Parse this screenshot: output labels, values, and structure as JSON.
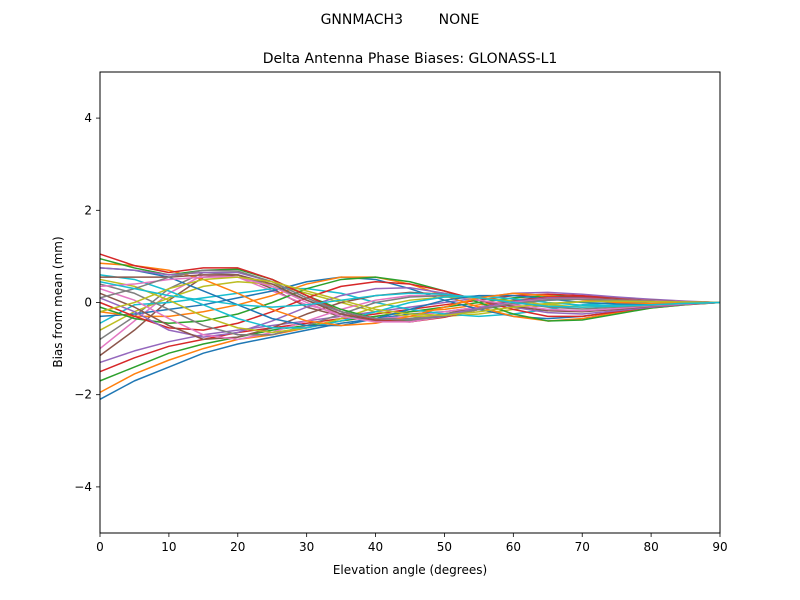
{
  "chart_data": {
    "type": "line",
    "suptitle": "GNNMACH3        NONE",
    "title": "Delta Antenna Phase Biases: GLONASS-L1",
    "xlabel": "Elevation angle (degrees)",
    "ylabel": "Bias from mean (mm)",
    "xlim": [
      0,
      90
    ],
    "ylim": [
      -5,
      5
    ],
    "xticks": [
      0,
      10,
      20,
      30,
      40,
      50,
      60,
      70,
      80,
      90
    ],
    "yticks": [
      -4,
      -2,
      0,
      2,
      4
    ],
    "grid": false,
    "legend": "none",
    "x": [
      0,
      5,
      10,
      15,
      20,
      25,
      30,
      35,
      40,
      45,
      50,
      55,
      60,
      65,
      70,
      75,
      80,
      85,
      90
    ],
    "colors": [
      "#1f77b4",
      "#ff7f0e",
      "#2ca02c",
      "#d62728",
      "#9467bd",
      "#8c564b",
      "#e377c2",
      "#7f7f7f",
      "#bcbd22",
      "#17becf"
    ],
    "series": [
      {
        "values": [
          -2.1,
          -1.7,
          -1.4,
          -1.1,
          -0.9,
          -0.75,
          -0.6,
          -0.45,
          -0.35,
          -0.25,
          -0.2,
          -0.1,
          0.0,
          0.05,
          0.08,
          0.08,
          0.05,
          0.02,
          0.0
        ]
      },
      {
        "values": [
          -1.95,
          -1.55,
          -1.25,
          -1.0,
          -0.8,
          -0.7,
          -0.55,
          -0.4,
          -0.3,
          -0.2,
          -0.15,
          -0.05,
          0.05,
          0.1,
          0.1,
          0.07,
          0.04,
          0.02,
          0.0
        ]
      },
      {
        "values": [
          -1.7,
          -1.4,
          -1.1,
          -0.9,
          -0.75,
          -0.6,
          -0.5,
          -0.4,
          -0.3,
          -0.2,
          -0.1,
          0.0,
          0.1,
          0.15,
          0.12,
          0.08,
          0.05,
          0.02,
          0.0
        ]
      },
      {
        "values": [
          -1.5,
          -1.2,
          -0.95,
          -0.8,
          -0.65,
          -0.55,
          -0.45,
          -0.35,
          -0.25,
          -0.15,
          -0.05,
          0.05,
          0.15,
          0.18,
          0.15,
          0.1,
          0.06,
          0.02,
          0.0
        ]
      },
      {
        "values": [
          -1.3,
          -1.05,
          -0.85,
          -0.7,
          -0.6,
          -0.5,
          -0.4,
          -0.3,
          -0.2,
          -0.1,
          0.0,
          0.1,
          0.2,
          0.22,
          0.18,
          0.12,
          0.07,
          0.03,
          0.0
        ]
      },
      {
        "values": [
          -1.15,
          -0.6,
          0.05,
          0.55,
          0.6,
          0.3,
          -0.1,
          -0.3,
          -0.4,
          -0.35,
          -0.25,
          -0.1,
          0.05,
          0.12,
          0.12,
          0.08,
          0.05,
          0.02,
          0.0
        ]
      },
      {
        "values": [
          -1.0,
          -0.4,
          0.2,
          0.6,
          0.55,
          0.25,
          -0.05,
          -0.25,
          -0.35,
          -0.3,
          -0.2,
          -0.1,
          0.0,
          0.08,
          0.1,
          0.07,
          0.04,
          0.02,
          0.0
        ]
      },
      {
        "values": [
          -0.8,
          -0.3,
          0.3,
          0.65,
          0.6,
          0.35,
          0.05,
          -0.2,
          -0.35,
          -0.35,
          -0.25,
          -0.15,
          -0.05,
          0.05,
          0.08,
          0.06,
          0.03,
          0.01,
          0.0
        ]
      },
      {
        "values": [
          -0.6,
          -0.2,
          0.1,
          0.35,
          0.45,
          0.4,
          0.2,
          0.0,
          -0.2,
          -0.3,
          -0.3,
          -0.25,
          -0.15,
          -0.05,
          0.02,
          0.04,
          0.03,
          0.01,
          0.0
        ]
      },
      {
        "values": [
          -0.45,
          -0.05,
          0.0,
          0.1,
          0.2,
          0.3,
          0.3,
          0.2,
          0.0,
          -0.15,
          -0.25,
          -0.3,
          -0.25,
          -0.15,
          -0.05,
          0.0,
          0.02,
          0.01,
          0.0
        ]
      },
      {
        "values": [
          -0.3,
          -0.25,
          -0.15,
          -0.05,
          0.1,
          0.25,
          0.45,
          0.55,
          0.5,
          0.3,
          0.05,
          -0.15,
          -0.3,
          -0.35,
          -0.3,
          -0.2,
          -0.1,
          -0.04,
          0.0
        ]
      },
      {
        "values": [
          -0.2,
          -0.3,
          -0.3,
          -0.2,
          -0.05,
          0.15,
          0.4,
          0.55,
          0.55,
          0.4,
          0.15,
          -0.1,
          -0.3,
          -0.4,
          -0.35,
          -0.22,
          -0.12,
          -0.05,
          0.0
        ]
      },
      {
        "values": [
          -0.1,
          -0.35,
          -0.45,
          -0.4,
          -0.25,
          0.0,
          0.3,
          0.5,
          0.55,
          0.45,
          0.25,
          0.0,
          -0.25,
          -0.4,
          -0.38,
          -0.25,
          -0.12,
          -0.05,
          0.0
        ]
      },
      {
        "values": [
          0.0,
          -0.3,
          -0.55,
          -0.6,
          -0.45,
          -0.2,
          0.1,
          0.35,
          0.45,
          0.4,
          0.25,
          0.05,
          -0.15,
          -0.3,
          -0.3,
          -0.2,
          -0.1,
          -0.04,
          0.0
        ]
      },
      {
        "values": [
          0.1,
          -0.2,
          -0.6,
          -0.75,
          -0.65,
          -0.4,
          -0.1,
          0.15,
          0.3,
          0.32,
          0.2,
          0.05,
          -0.1,
          -0.22,
          -0.25,
          -0.18,
          -0.1,
          -0.04,
          0.0
        ]
      },
      {
        "values": [
          0.2,
          -0.1,
          -0.5,
          -0.8,
          -0.75,
          -0.55,
          -0.25,
          0.0,
          0.15,
          0.22,
          0.18,
          0.05,
          -0.08,
          -0.18,
          -0.2,
          -0.15,
          -0.08,
          -0.03,
          0.0
        ]
      },
      {
        "values": [
          0.3,
          0.05,
          -0.35,
          -0.7,
          -0.8,
          -0.65,
          -0.4,
          -0.15,
          0.05,
          0.15,
          0.15,
          0.05,
          -0.05,
          -0.15,
          -0.18,
          -0.13,
          -0.07,
          -0.03,
          0.0
        ]
      },
      {
        "values": [
          0.4,
          0.2,
          -0.15,
          -0.5,
          -0.7,
          -0.7,
          -0.5,
          -0.25,
          0.0,
          0.12,
          0.15,
          0.1,
          0.0,
          -0.1,
          -0.14,
          -0.1,
          -0.06,
          -0.02,
          0.0
        ]
      },
      {
        "values": [
          0.5,
          0.35,
          0.05,
          -0.3,
          -0.55,
          -0.65,
          -0.55,
          -0.35,
          -0.1,
          0.05,
          0.12,
          0.1,
          0.03,
          -0.05,
          -0.1,
          -0.08,
          -0.05,
          -0.02,
          0.0
        ]
      },
      {
        "values": [
          0.6,
          0.5,
          0.25,
          -0.05,
          -0.35,
          -0.55,
          -0.55,
          -0.4,
          -0.2,
          0.0,
          0.12,
          0.14,
          0.08,
          0.0,
          -0.06,
          -0.06,
          -0.04,
          -0.02,
          0.0
        ]
      },
      {
        "values": [
          0.75,
          0.7,
          0.55,
          0.25,
          -0.05,
          -0.35,
          -0.5,
          -0.5,
          -0.35,
          -0.15,
          0.05,
          0.15,
          0.15,
          0.08,
          0.0,
          -0.03,
          -0.03,
          -0.01,
          0.0
        ]
      },
      {
        "values": [
          0.85,
          0.8,
          0.7,
          0.5,
          0.2,
          -0.15,
          -0.4,
          -0.5,
          -0.45,
          -0.3,
          -0.1,
          0.1,
          0.2,
          0.15,
          0.06,
          0.0,
          -0.02,
          -0.01,
          0.0
        ]
      },
      {
        "values": [
          0.95,
          0.75,
          0.6,
          0.7,
          0.72,
          0.5,
          0.15,
          -0.15,
          -0.35,
          -0.4,
          -0.3,
          -0.15,
          0.0,
          0.1,
          0.1,
          0.06,
          0.03,
          0.01,
          0.0
        ]
      },
      {
        "values": [
          1.05,
          0.8,
          0.65,
          0.75,
          0.75,
          0.5,
          0.15,
          -0.2,
          -0.38,
          -0.42,
          -0.32,
          -0.15,
          0.02,
          0.12,
          0.12,
          0.07,
          0.03,
          0.01,
          0.0
        ]
      },
      {
        "values": [
          0.75,
          0.7,
          0.6,
          0.65,
          0.65,
          0.45,
          0.1,
          -0.2,
          -0.35,
          -0.38,
          -0.28,
          -0.12,
          0.02,
          0.1,
          0.1,
          0.06,
          0.03,
          0.01,
          0.0
        ]
      },
      {
        "values": [
          0.55,
          0.55,
          0.55,
          0.6,
          0.6,
          0.4,
          0.05,
          -0.25,
          -0.4,
          -0.42,
          -0.3,
          -0.15,
          0.0,
          0.08,
          0.09,
          0.06,
          0.03,
          0.01,
          0.0
        ]
      },
      {
        "values": [
          0.35,
          0.4,
          0.5,
          0.55,
          0.55,
          0.35,
          0.0,
          -0.3,
          -0.42,
          -0.42,
          -0.3,
          -0.15,
          0.0,
          0.07,
          0.08,
          0.05,
          0.03,
          0.01,
          0.0
        ]
      },
      {
        "values": [
          0.1,
          0.3,
          0.55,
          0.7,
          0.68,
          0.45,
          0.1,
          -0.2,
          -0.35,
          -0.38,
          -0.3,
          -0.15,
          -0.02,
          0.06,
          0.07,
          0.05,
          0.03,
          0.01,
          0.0
        ]
      },
      {
        "values": [
          -0.2,
          0.0,
          0.3,
          0.5,
          0.55,
          0.45,
          0.25,
          0.05,
          -0.15,
          -0.25,
          -0.28,
          -0.2,
          -0.1,
          -0.02,
          0.02,
          0.03,
          0.02,
          0.01,
          0.0
        ]
      },
      {
        "values": [
          0.45,
          0.3,
          0.15,
          0.05,
          -0.05,
          -0.1,
          -0.05,
          0.05,
          0.15,
          0.2,
          0.18,
          0.1,
          0.0,
          -0.08,
          -0.1,
          -0.08,
          -0.05,
          -0.02,
          0.0
        ]
      }
    ]
  }
}
